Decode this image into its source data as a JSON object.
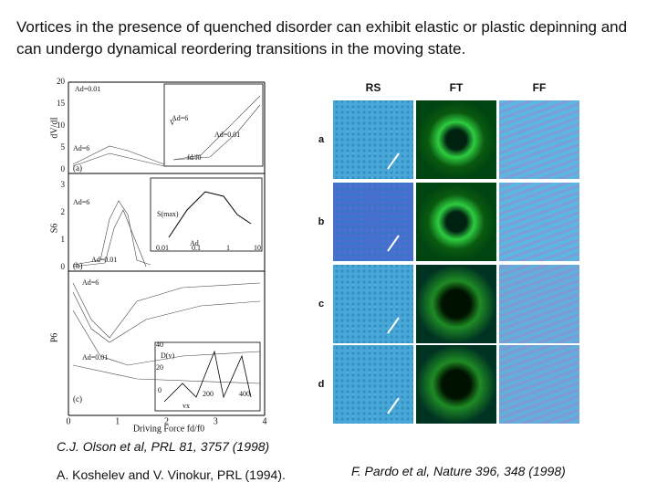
{
  "title": "Vortices in the presence of quenched disorder can exhibit elastic or plastic depinning and can undergo dynamical reordering transitions in the moving state.",
  "left_figure": {
    "axis_labels": [
      "dV/dI",
      "S6",
      "P6",
      "Driving Force fd/f0"
    ],
    "panel_labels": [
      "(a)",
      "(b)",
      "(c)"
    ],
    "x_ticks": [
      "0",
      "1",
      "2",
      "3",
      "4"
    ],
    "a_ticks": [
      "20",
      "15",
      "10",
      "5",
      "0"
    ],
    "b_ticks": [
      "3",
      "2",
      "1",
      "0"
    ],
    "annotations": [
      "Ad=0.01",
      "Ad=6",
      "Ad=6",
      "Ad=0.01",
      "Ad=6",
      "Ad=0.01",
      "Ad=6",
      "Ad=0.01"
    ],
    "inset_labels": [
      "V",
      "fd/f0",
      "S(max)",
      "Ad",
      "D(v)",
      "vx"
    ],
    "inset_ticks": [
      "0.01",
      "0.1",
      "1",
      "10",
      "200",
      "400",
      "40",
      "20",
      "0"
    ]
  },
  "right_figure": {
    "columns": [
      "RS",
      "FT",
      "FF"
    ],
    "rows": [
      "a",
      "b",
      "c",
      "d"
    ]
  },
  "citations": [
    "C.J. Olson et al, PRL 81, 3757 (1998)",
    "A. Koshelev and V. Vinokur, PRL (1994).",
    "F. Pardo et al, Nature 396, 348 (1998)"
  ]
}
